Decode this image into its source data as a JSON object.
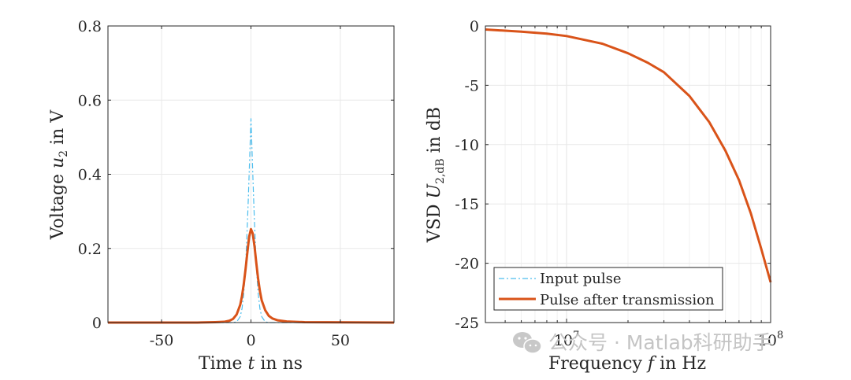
{
  "chart_data": [
    {
      "type": "line",
      "title": "",
      "xlabel": {
        "prefix": "Time ",
        "var": "t",
        "suffix": " in ns"
      },
      "ylabel": {
        "prefix": "Voltage ",
        "var": "u",
        "sub": "2",
        "suffix": " in V"
      },
      "xlim": [
        -80,
        80
      ],
      "ylim": [
        0,
        0.8
      ],
      "xticks": [
        -50,
        0,
        50
      ],
      "xtick_labels": [
        "-50",
        "0",
        "50"
      ],
      "yticks": [
        0,
        0.2,
        0.4,
        0.6,
        0.8
      ],
      "ytick_labels": [
        "0",
        "0.2",
        "0.4",
        "0.6",
        "0.8"
      ],
      "grid": true,
      "series": [
        {
          "name": "Input pulse",
          "color": "#4DBEEE",
          "style": "dash-dot",
          "x": [
            -80,
            -20,
            -10,
            -8,
            -6,
            -5,
            -4,
            -3,
            -2,
            -1.5,
            -1,
            -0.5,
            0,
            0.5,
            1,
            1.5,
            2,
            3,
            4,
            5,
            6,
            8,
            10,
            20,
            80
          ],
          "y": [
            0,
            0,
            0,
            0.002,
            0.016,
            0.038,
            0.08,
            0.15,
            0.267,
            0.332,
            0.404,
            0.477,
            0.55,
            0.477,
            0.404,
            0.332,
            0.267,
            0.15,
            0.08,
            0.038,
            0.016,
            0.002,
            0,
            0,
            0
          ]
        },
        {
          "name": "Pulse after transmission",
          "color": "#D95319",
          "style": "solid",
          "x": [
            -80,
            -30,
            -20,
            -15,
            -12,
            -10,
            -8,
            -6,
            -5,
            -4,
            -3,
            -2,
            -1,
            0,
            1,
            2,
            3,
            4,
            5,
            6,
            8,
            10,
            12,
            15,
            20,
            30,
            80
          ],
          "y": [
            0,
            0,
            0.001,
            0.002,
            0.005,
            0.01,
            0.022,
            0.048,
            0.072,
            0.105,
            0.145,
            0.19,
            0.232,
            0.252,
            0.24,
            0.205,
            0.16,
            0.118,
            0.085,
            0.06,
            0.033,
            0.018,
            0.011,
            0.006,
            0.003,
            0.001,
            0
          ]
        }
      ]
    },
    {
      "type": "line",
      "title": "",
      "xscale": "log",
      "xlabel": {
        "prefix": "Frequency ",
        "var": "f",
        "suffix": " in Hz"
      },
      "ylabel": {
        "prefix": "VSD ",
        "var": "U",
        "sub": "2,dB",
        "suffix": " in dB"
      },
      "xlim": [
        4000000,
        100000000
      ],
      "ylim": [
        -25,
        0
      ],
      "xticks": [
        10000000,
        100000000
      ],
      "xtick_labels": [
        {
          "base": "10",
          "exp": "7"
        },
        {
          "base": "10",
          "exp": "8"
        }
      ],
      "yticks": [
        -25,
        -20,
        -15,
        -10,
        -5,
        0
      ],
      "ytick_labels": [
        "-25",
        "-20",
        "-15",
        "-10",
        "-5",
        "0"
      ],
      "grid": true,
      "legend_position": "bottom-left",
      "series": [
        {
          "name": "Pulse after transmission",
          "color": "#D95319",
          "style": "solid",
          "x": [
            4000000,
            6000000,
            8000000,
            10000000,
            15000000,
            20000000,
            25000000,
            30000000,
            40000000,
            50000000,
            60000000,
            70000000,
            80000000,
            90000000,
            100000000
          ],
          "y": [
            -0.3,
            -0.48,
            -0.65,
            -0.85,
            -1.5,
            -2.3,
            -3.1,
            -3.9,
            -5.9,
            -8.1,
            -10.5,
            -13,
            -15.8,
            -18.8,
            -21.6
          ]
        }
      ],
      "legend_entries": [
        "Input pulse",
        "Pulse after transmission"
      ]
    }
  ],
  "watermark": {
    "icon": "wechat-icon",
    "text": "公众号 · Matlab科研助手"
  }
}
